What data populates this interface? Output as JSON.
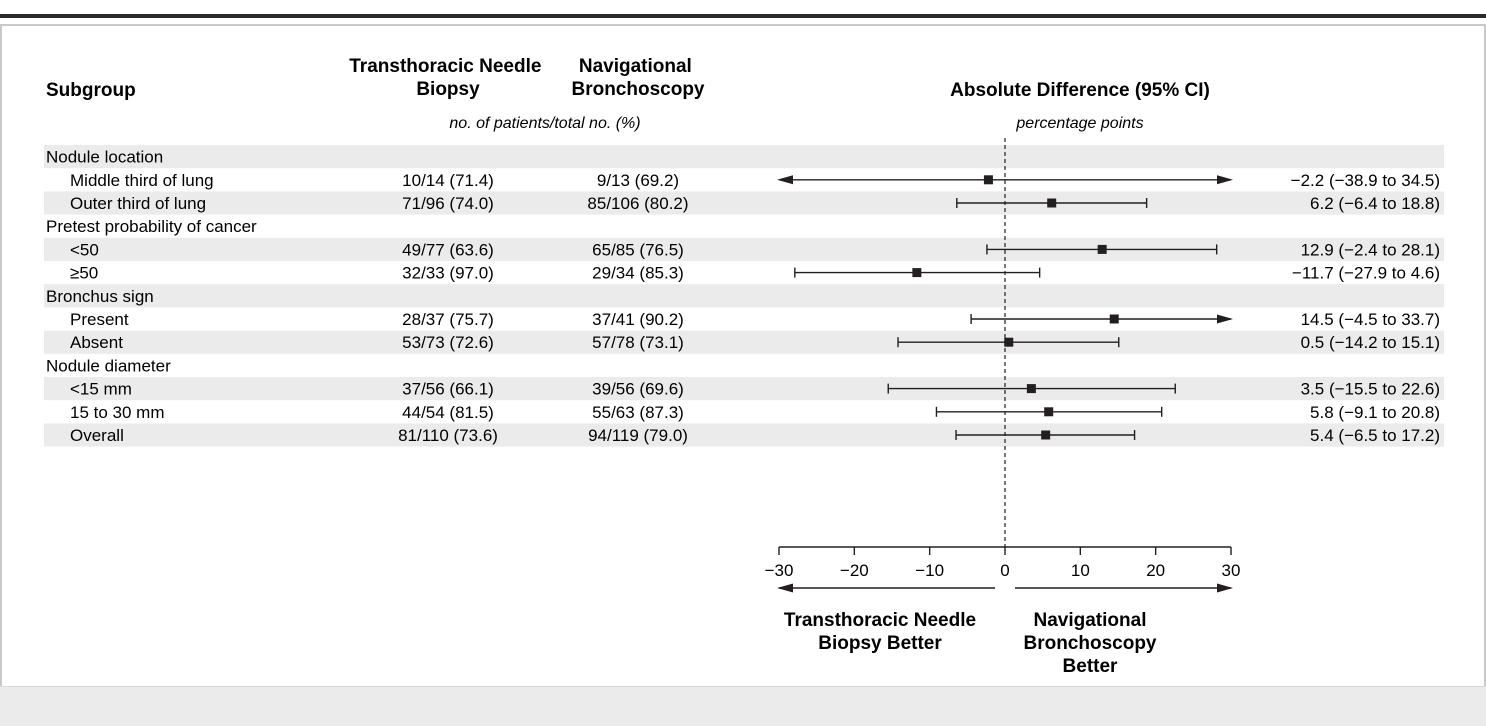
{
  "chart_data": {
    "type": "forest",
    "title": "",
    "columns": {
      "subgroup": "Subgroup",
      "tnb": "Transthoracic Needle Biopsy",
      "nb": "Navigational Bronchoscopy",
      "counts_subheader": "no. of patients/total no. (%)",
      "diff": "Absolute Difference (95% CI)",
      "diff_subheader": "percentage points"
    },
    "rows": [
      {
        "label": "Nodule location",
        "group": true
      },
      {
        "label": "Middle third of lung",
        "tnb": "10/14 (71.4)",
        "nb": "9/13 (69.2)",
        "estimate": -2.2,
        "ci": [
          -38.9,
          34.5
        ],
        "text": "−2.2 (−38.9 to 34.5)",
        "arrow_left": true,
        "arrow_right": true
      },
      {
        "label": "Outer third of lung",
        "tnb": "71/96 (74.0)",
        "nb": "85/106 (80.2)",
        "estimate": 6.2,
        "ci": [
          -6.4,
          18.8
        ],
        "text": "6.2 (−6.4 to 18.8)"
      },
      {
        "label": "Pretest probability of cancer",
        "group": true
      },
      {
        "label": "<50",
        "tnb": "49/77 (63.6)",
        "nb": "65/85 (76.5)",
        "estimate": 12.9,
        "ci": [
          -2.4,
          28.1
        ],
        "text": "12.9 (−2.4 to 28.1)"
      },
      {
        "label": "≥50",
        "tnb": "32/33 (97.0)",
        "nb": "29/34 (85.3)",
        "estimate": -11.7,
        "ci": [
          -27.9,
          4.6
        ],
        "text": "−11.7 (−27.9 to 4.6)"
      },
      {
        "label": "Bronchus sign",
        "group": true
      },
      {
        "label": "Present",
        "tnb": "28/37 (75.7)",
        "nb": "37/41 (90.2)",
        "estimate": 14.5,
        "ci": [
          -4.5,
          33.7
        ],
        "text": "14.5 (−4.5 to 33.7)",
        "arrow_right": true
      },
      {
        "label": "Absent",
        "tnb": "53/73 (72.6)",
        "nb": "57/78 (73.1)",
        "estimate": 0.5,
        "ci": [
          -14.2,
          15.1
        ],
        "text": "0.5 (−14.2 to 15.1)"
      },
      {
        "label": "Nodule diameter",
        "group": true
      },
      {
        "label": "<15 mm",
        "tnb": "37/56 (66.1)",
        "nb": "39/56 (69.6)",
        "estimate": 3.5,
        "ci": [
          -15.5,
          22.6
        ],
        "text": "3.5 (−15.5 to 22.6)"
      },
      {
        "label": "15 to 30 mm",
        "tnb": "44/54 (81.5)",
        "nb": "55/63 (87.3)",
        "estimate": 5.8,
        "ci": [
          -9.1,
          20.8
        ],
        "text": "5.8 (−9.1 to 20.8)"
      },
      {
        "label": "Overall",
        "tnb": "81/110 (73.6)",
        "nb": "94/119 (79.0)",
        "estimate": 5.4,
        "ci": [
          -6.5,
          17.2
        ],
        "text": "5.4 (−6.5 to 17.2)"
      }
    ],
    "x_axis": {
      "range": [
        -30,
        30
      ],
      "ticks": [
        "−30",
        "−20",
        "−10",
        "0",
        "10",
        "20",
        "30"
      ],
      "tick_values": [
        -30,
        -20,
        -10,
        0,
        10,
        20,
        30
      ]
    },
    "direction_labels": {
      "left": [
        "Transthoracic Needle",
        "Biopsy Better"
      ],
      "right": [
        "Navigational",
        "Bronchoscopy",
        "Better"
      ]
    },
    "colors": {
      "band": "#ebebeb",
      "marks": "#231f20",
      "rule": "#2b2b2b",
      "border": "#c9c9c9"
    }
  }
}
